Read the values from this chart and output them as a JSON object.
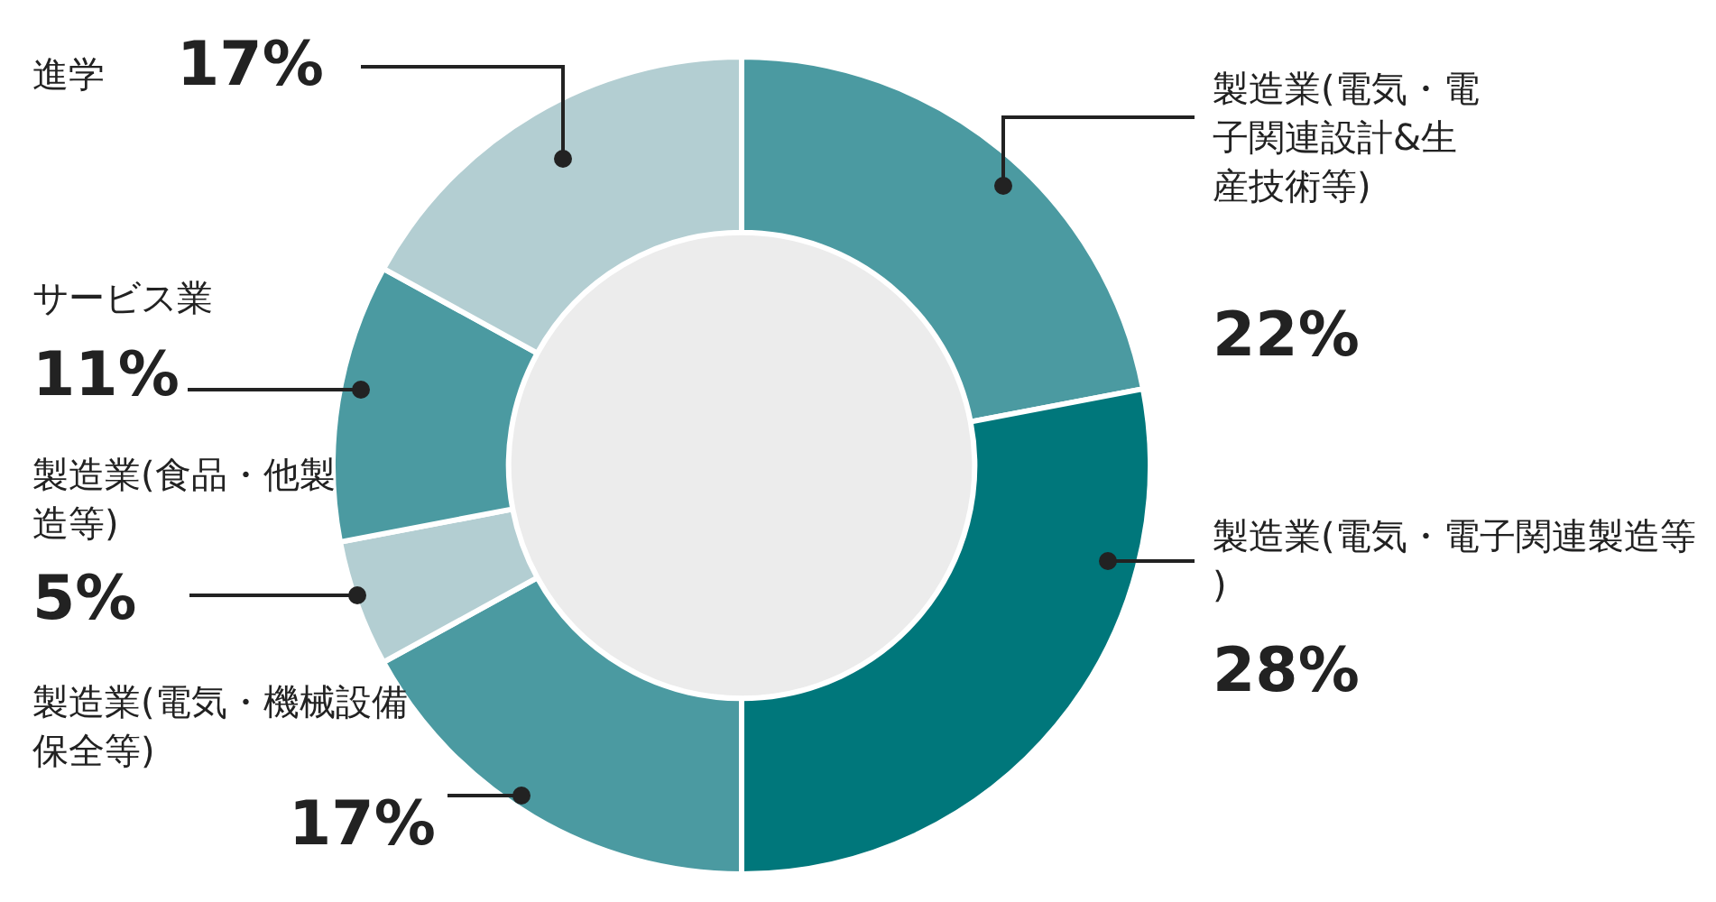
{
  "chart_data": {
    "type": "donut",
    "categories": [
      "製造業(電気・電子関連設計&生産技術等)",
      "製造業(電気・電子関連製造等)",
      "製造業(電気・機械設備保全等)",
      "製造業(食品・他製造等)",
      "サービス業",
      "進学"
    ],
    "values": [
      22,
      28,
      17,
      5,
      11,
      17
    ],
    "value_labels": [
      "22%",
      "28%",
      "17%",
      "5%",
      "11%",
      "17%"
    ],
    "colors": [
      "#4b9aa1",
      "#00777b",
      "#4b9aa1",
      "#b3ced2",
      "#4b9aa1",
      "#b3ced2"
    ],
    "legend": false
  }
}
